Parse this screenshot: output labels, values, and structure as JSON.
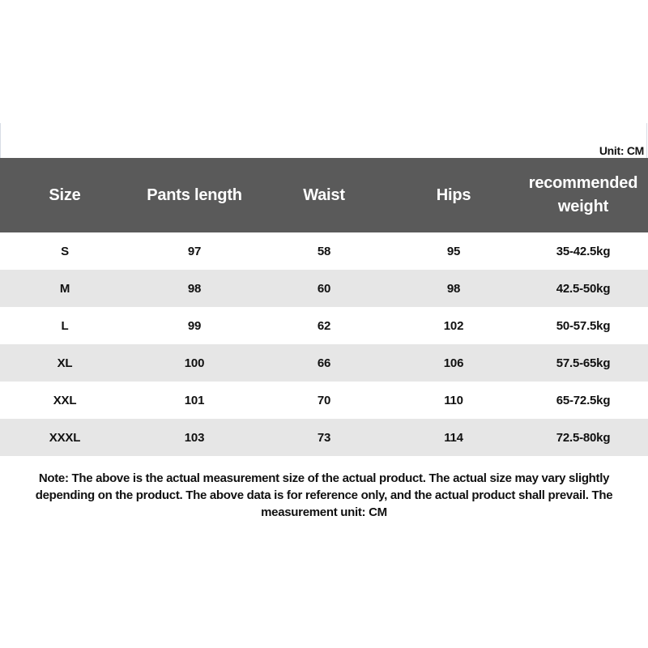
{
  "unit_label": "Unit: CM",
  "table": {
    "headers": [
      "Size",
      "Pants length",
      "Waist",
      "Hips",
      "recommended weight"
    ],
    "rows": [
      [
        "S",
        "97",
        "58",
        "95",
        "35-42.5kg"
      ],
      [
        "M",
        "98",
        "60",
        "98",
        "42.5-50kg"
      ],
      [
        "L",
        "99",
        "62",
        "102",
        "50-57.5kg"
      ],
      [
        "XL",
        "100",
        "66",
        "106",
        "57.5-65kg"
      ],
      [
        "XXL",
        "101",
        "70",
        "110",
        "65-72.5kg"
      ],
      [
        "XXXL",
        "103",
        "73",
        "114",
        "72.5-80kg"
      ]
    ]
  },
  "note": "Note: The above is the actual measurement size of the actual product. The actual size may vary slightly depending on the product. The above data is for reference only, and the actual product shall prevail. The measurement unit: CM",
  "colors": {
    "header_bg": "#5a5a5a",
    "alt_row_bg": "#e6e6e6"
  }
}
